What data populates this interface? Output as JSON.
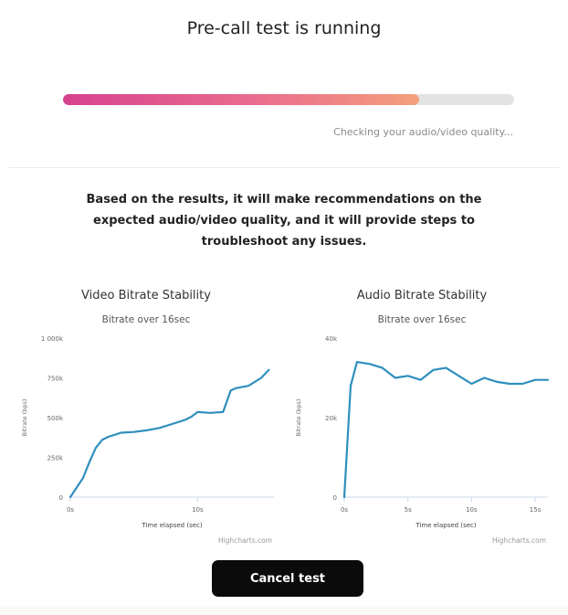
{
  "header": {
    "title": "Pre-call test is running",
    "status": "Checking your audio/video quality...",
    "progress": 0.79
  },
  "description": "Based on the results, it will make recommendations on the expected audio/video quality, and it will provide steps to troubleshoot any issues.",
  "cancel_label": "Cancel test",
  "colors": {
    "line": "#2f8fbd",
    "progress_start": "#d6438f",
    "progress_end": "#f4a07c",
    "button": "#0b0b0b"
  },
  "chart_data": [
    {
      "type": "line",
      "title": "Video Bitrate Stability",
      "subtitle": "Bitrate over 16sec",
      "xlabel": "Time elapsed (sec)",
      "ylabel": "Bitrate (bps)",
      "credits": "Highcharts.com",
      "ylim": [
        0,
        1000000
      ],
      "xlim": [
        0,
        16
      ],
      "yticks": [
        0,
        250000,
        500000,
        750000,
        1000000
      ],
      "ytick_labels": [
        "0",
        "250k",
        "500k",
        "750k",
        "1 000k"
      ],
      "xticks": [
        0,
        10
      ],
      "xtick_labels": [
        "0s",
        "10s"
      ],
      "grid": false,
      "x": [
        0,
        1,
        1.5,
        2,
        2.5,
        3,
        4,
        5,
        6,
        7,
        8,
        9,
        9.5,
        10,
        11,
        12,
        12.6,
        13,
        14,
        15,
        15.6
      ],
      "values": [
        0,
        120000,
        220000,
        310000,
        360000,
        380000,
        405000,
        410000,
        420000,
        435000,
        460000,
        485000,
        505000,
        535000,
        530000,
        535000,
        670000,
        685000,
        700000,
        750000,
        800000
      ]
    },
    {
      "type": "line",
      "title": "Audio Bitrate Stability",
      "subtitle": "Bitrate over 16sec",
      "xlabel": "Time elapsed (sec)",
      "ylabel": "Bitrate (bps)",
      "credits": "Highcharts.com",
      "ylim": [
        0,
        40000
      ],
      "xlim": [
        0,
        16
      ],
      "yticks": [
        0,
        20000,
        40000
      ],
      "ytick_labels": [
        "0",
        "20k",
        "40k"
      ],
      "xticks": [
        0,
        5,
        10,
        15
      ],
      "xtick_labels": [
        "0s",
        "5s",
        "10s",
        "15s"
      ],
      "grid": false,
      "x": [
        0,
        0.5,
        1,
        2,
        3,
        4,
        5,
        6,
        7,
        8,
        9,
        10,
        11,
        12,
        13,
        14,
        15,
        16
      ],
      "values": [
        0,
        28000,
        34000,
        33500,
        32500,
        30000,
        30500,
        29500,
        32000,
        32500,
        30500,
        28500,
        30000,
        29000,
        28500,
        28500,
        29500,
        29500
      ]
    }
  ]
}
